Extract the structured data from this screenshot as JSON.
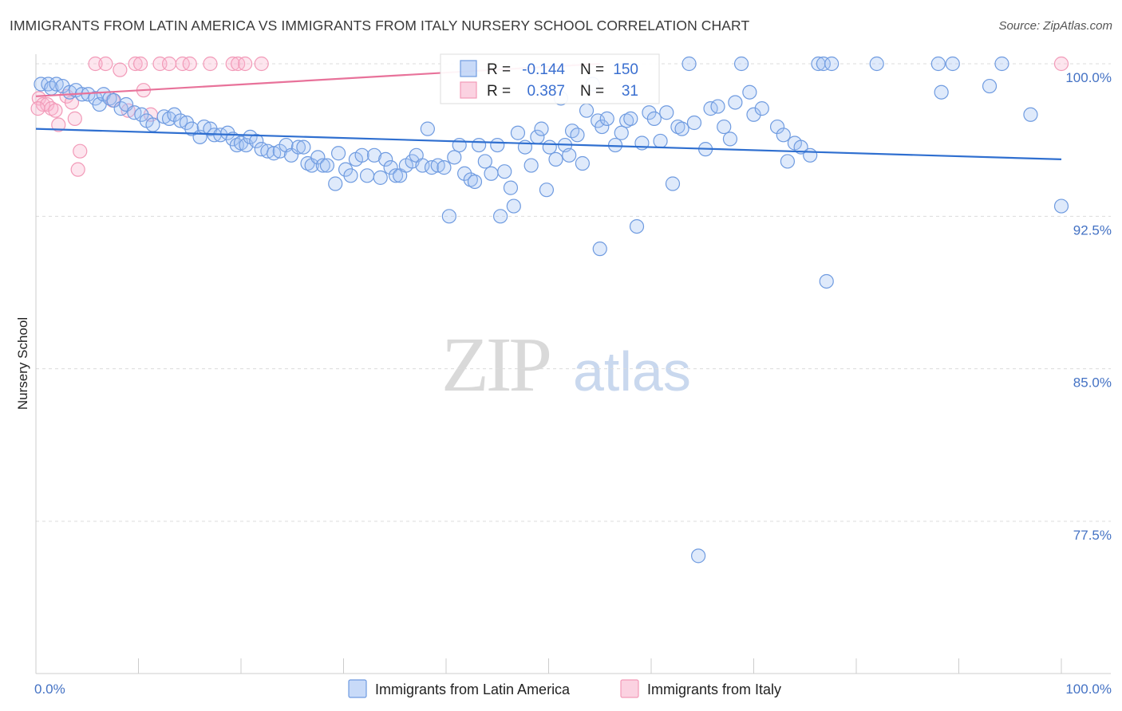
{
  "header": {
    "title": "IMMIGRANTS FROM LATIN AMERICA VS IMMIGRANTS FROM ITALY NURSERY SCHOOL CORRELATION CHART",
    "source": "Source: ZipAtlas.com"
  },
  "watermark": {
    "zip": "ZIP",
    "atlas": "atlas"
  },
  "stats": [
    {
      "r_label": "R =",
      "r_value": "-0.144",
      "n_label": "N =",
      "n_value": "150",
      "color": "#6f9be0"
    },
    {
      "r_label": "R =",
      "r_value": "0.387",
      "n_label": "N =",
      "n_value": "31",
      "color": "#f29ab8"
    }
  ],
  "chart_data": {
    "type": "scatter",
    "title": "IMMIGRANTS FROM LATIN AMERICA VS IMMIGRANTS FROM ITALY NURSERY SCHOOL CORRELATION CHART",
    "xlabel": "",
    "ylabel": "Nursery School",
    "xlim": [
      0,
      100
    ],
    "ylim": [
      71.0,
      101.0
    ],
    "x_tick_labels": [
      "0.0%",
      "100.0%"
    ],
    "y_ticks": [
      100.0,
      92.5,
      85.0,
      77.5
    ],
    "y_tick_labels": [
      "100.0%",
      "92.5%",
      "85.0%",
      "77.5%"
    ],
    "grid": "horizontal dashed",
    "legend_position": "bottom-center",
    "series": [
      {
        "name": "Immigrants from Latin America",
        "color": "#6f9be0",
        "fill": "rgba(164,194,244,0.35)",
        "trend": {
          "x": [
            0,
            100
          ],
          "y": [
            96.8,
            95.3
          ],
          "color": "#2f6fd0"
        },
        "points": [
          [
            0.5,
            99.0
          ],
          [
            1.2,
            99.0
          ],
          [
            1.5,
            98.8
          ],
          [
            2.0,
            99.0
          ],
          [
            2.6,
            98.9
          ],
          [
            3.3,
            98.6
          ],
          [
            3.9,
            98.7
          ],
          [
            4.5,
            98.5
          ],
          [
            5.1,
            98.5
          ],
          [
            5.8,
            98.3
          ],
          [
            6.2,
            98.0
          ],
          [
            6.6,
            98.5
          ],
          [
            7.2,
            98.3
          ],
          [
            7.6,
            98.2
          ],
          [
            8.3,
            97.8
          ],
          [
            8.8,
            98.0
          ],
          [
            9.6,
            97.6
          ],
          [
            10.3,
            97.5
          ],
          [
            10.8,
            97.2
          ],
          [
            11.4,
            97.0
          ],
          [
            12.5,
            97.4
          ],
          [
            13.0,
            97.3
          ],
          [
            13.5,
            97.5
          ],
          [
            14.1,
            97.2
          ],
          [
            14.7,
            97.1
          ],
          [
            15.2,
            96.8
          ],
          [
            16.0,
            96.4
          ],
          [
            16.4,
            96.9
          ],
          [
            17.0,
            96.8
          ],
          [
            17.4,
            96.5
          ],
          [
            18.0,
            96.5
          ],
          [
            18.7,
            96.6
          ],
          [
            19.2,
            96.3
          ],
          [
            19.6,
            96.0
          ],
          [
            20.0,
            96.1
          ],
          [
            20.5,
            96.0
          ],
          [
            20.9,
            96.4
          ],
          [
            21.5,
            96.2
          ],
          [
            22.0,
            95.8
          ],
          [
            22.6,
            95.7
          ],
          [
            23.2,
            95.6
          ],
          [
            23.8,
            95.7
          ],
          [
            24.4,
            96.0
          ],
          [
            24.9,
            95.5
          ],
          [
            25.6,
            95.9
          ],
          [
            26.1,
            95.9
          ],
          [
            26.5,
            95.1
          ],
          [
            26.9,
            95.0
          ],
          [
            27.5,
            95.4
          ],
          [
            28.0,
            95.0
          ],
          [
            28.4,
            95.0
          ],
          [
            29.2,
            94.1
          ],
          [
            29.5,
            95.6
          ],
          [
            30.2,
            94.8
          ],
          [
            30.7,
            94.5
          ],
          [
            31.2,
            95.3
          ],
          [
            31.8,
            95.5
          ],
          [
            32.3,
            94.5
          ],
          [
            33.0,
            95.5
          ],
          [
            33.6,
            94.4
          ],
          [
            34.1,
            95.3
          ],
          [
            34.6,
            94.9
          ],
          [
            35.1,
            94.5
          ],
          [
            35.5,
            94.5
          ],
          [
            36.1,
            95.0
          ],
          [
            36.7,
            95.2
          ],
          [
            37.1,
            95.5
          ],
          [
            37.7,
            95.0
          ],
          [
            38.2,
            96.8
          ],
          [
            38.6,
            94.9
          ],
          [
            39.2,
            95.0
          ],
          [
            39.8,
            94.9
          ],
          [
            40.3,
            92.5
          ],
          [
            40.8,
            95.4
          ],
          [
            41.3,
            96.0
          ],
          [
            41.8,
            94.6
          ],
          [
            42.4,
            94.3
          ],
          [
            42.8,
            94.2
          ],
          [
            43.2,
            96.0
          ],
          [
            43.8,
            95.2
          ],
          [
            44.4,
            94.6
          ],
          [
            45.0,
            96.0
          ],
          [
            45.3,
            92.5
          ],
          [
            45.7,
            94.7
          ],
          [
            46.3,
            93.9
          ],
          [
            46.6,
            93.0
          ],
          [
            47.0,
            96.6
          ],
          [
            47.7,
            95.9
          ],
          [
            48.3,
            95.0
          ],
          [
            48.9,
            96.4
          ],
          [
            49.3,
            96.8
          ],
          [
            49.8,
            93.8
          ],
          [
            50.1,
            95.9
          ],
          [
            50.7,
            95.3
          ],
          [
            51.2,
            98.3
          ],
          [
            51.6,
            96.0
          ],
          [
            52.0,
            95.5
          ],
          [
            52.3,
            96.7
          ],
          [
            52.8,
            96.5
          ],
          [
            53.3,
            95.1
          ],
          [
            53.7,
            97.7
          ],
          [
            54.3,
            99.0
          ],
          [
            54.8,
            97.2
          ],
          [
            55.2,
            96.9
          ],
          [
            55.7,
            97.3
          ],
          [
            56.5,
            96.0
          ],
          [
            57.1,
            96.6
          ],
          [
            57.6,
            97.2
          ],
          [
            58.0,
            97.3
          ],
          [
            58.6,
            92.0
          ],
          [
            59.1,
            96.1
          ],
          [
            59.8,
            97.6
          ],
          [
            60.3,
            97.3
          ],
          [
            60.9,
            96.2
          ],
          [
            61.5,
            97.6
          ],
          [
            62.1,
            94.1
          ],
          [
            62.6,
            96.9
          ],
          [
            63.0,
            96.8
          ],
          [
            63.7,
            100.0
          ],
          [
            64.2,
            97.1
          ],
          [
            55.0,
            90.9
          ],
          [
            64.6,
            75.8
          ],
          [
            65.3,
            95.8
          ],
          [
            65.8,
            97.8
          ],
          [
            66.5,
            97.9
          ],
          [
            67.1,
            96.9
          ],
          [
            67.7,
            96.3
          ],
          [
            68.2,
            98.1
          ],
          [
            68.8,
            100.0
          ],
          [
            69.6,
            98.6
          ],
          [
            70.0,
            97.5
          ],
          [
            70.8,
            97.8
          ],
          [
            72.3,
            96.9
          ],
          [
            72.9,
            96.5
          ],
          [
            73.3,
            95.2
          ],
          [
            74.0,
            96.1
          ],
          [
            74.6,
            95.9
          ],
          [
            75.5,
            95.5
          ],
          [
            76.3,
            100.0
          ],
          [
            76.8,
            100.0
          ],
          [
            77.1,
            89.3
          ],
          [
            77.6,
            100.0
          ],
          [
            82.0,
            100.0
          ],
          [
            88.0,
            100.0
          ],
          [
            88.3,
            98.6
          ],
          [
            89.4,
            100.0
          ],
          [
            93.0,
            98.9
          ],
          [
            94.2,
            100.0
          ],
          [
            100.0,
            93.0
          ],
          [
            97.0,
            97.5
          ]
        ]
      },
      {
        "name": "Immigrants from Italy",
        "color": "#f29ab8",
        "fill": "rgba(248,180,205,0.35)",
        "trend": {
          "x": [
            0,
            55
          ],
          "y": [
            98.4,
            100.0
          ],
          "color": "#e8729a"
        },
        "points": [
          [
            0.3,
            98.3
          ],
          [
            0.7,
            98.0
          ],
          [
            1.1,
            98.0
          ],
          [
            1.5,
            97.8
          ],
          [
            1.9,
            97.7
          ],
          [
            2.2,
            97.0
          ],
          [
            3.0,
            98.4
          ],
          [
            3.5,
            98.1
          ],
          [
            3.8,
            97.3
          ],
          [
            4.3,
            95.7
          ],
          [
            4.1,
            94.8
          ],
          [
            5.8,
            100.0
          ],
          [
            6.8,
            100.0
          ],
          [
            7.5,
            98.2
          ],
          [
            8.2,
            99.7
          ],
          [
            9.0,
            97.7
          ],
          [
            9.7,
            100.0
          ],
          [
            10.2,
            100.0
          ],
          [
            10.5,
            98.7
          ],
          [
            11.2,
            97.5
          ],
          [
            12.1,
            100.0
          ],
          [
            13.0,
            100.0
          ],
          [
            14.3,
            100.0
          ],
          [
            15.0,
            100.0
          ],
          [
            17.0,
            100.0
          ],
          [
            19.2,
            100.0
          ],
          [
            19.7,
            100.0
          ],
          [
            20.4,
            100.0
          ],
          [
            22.0,
            100.0
          ],
          [
            0.2,
            97.8
          ],
          [
            100.0,
            100.0
          ]
        ]
      }
    ]
  },
  "legend": {
    "items": [
      {
        "label": "Immigrants from Latin America",
        "color": "#6f9be0"
      },
      {
        "label": "Immigrants from Italy",
        "color": "#f29ab8"
      }
    ]
  }
}
